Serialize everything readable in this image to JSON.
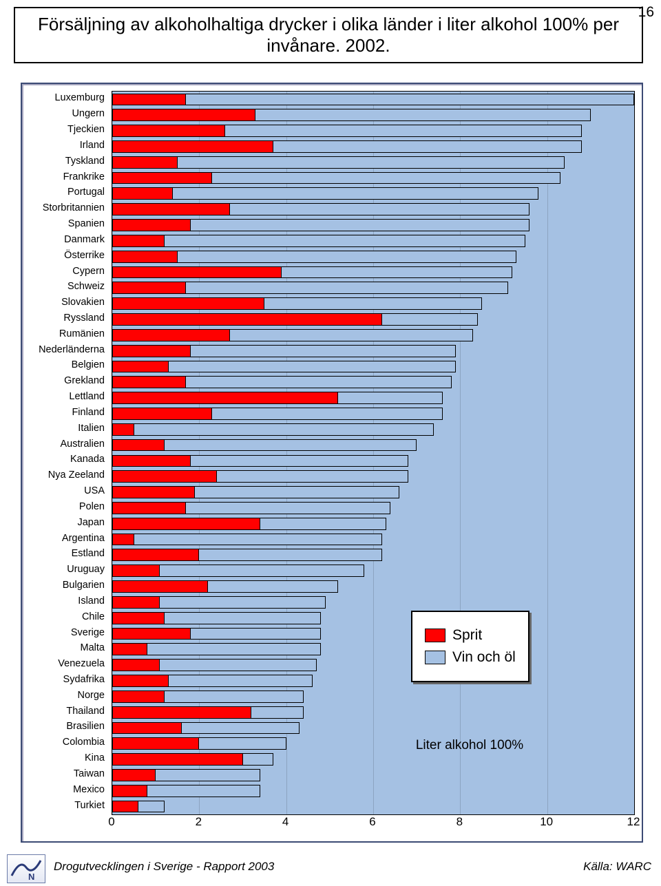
{
  "page_number": "16",
  "title": "Försäljning av alkoholhaltiga drycker i olika länder i liter alkohol 100% per invånare. 2002.",
  "chart": {
    "type": "bar",
    "xlim": [
      0,
      12
    ],
    "xticks": [
      0,
      2,
      4,
      6,
      8,
      10,
      12
    ],
    "bar_color_total": "#a5c1e3",
    "bar_color_sprit": "#ff0000",
    "border_color": "#000000",
    "plot_bg": "#a5c1e3",
    "countries": [
      {
        "name": "Luxemburg",
        "sprit": 1.7,
        "total": 12.0
      },
      {
        "name": "Ungern",
        "sprit": 3.3,
        "total": 11.0
      },
      {
        "name": "Tjeckien",
        "sprit": 2.6,
        "total": 10.8
      },
      {
        "name": "Irland",
        "sprit": 3.7,
        "total": 10.8
      },
      {
        "name": "Tyskland",
        "sprit": 1.5,
        "total": 10.4
      },
      {
        "name": "Frankrike",
        "sprit": 2.3,
        "total": 10.3
      },
      {
        "name": "Portugal",
        "sprit": 1.4,
        "total": 9.8
      },
      {
        "name": "Storbritannien",
        "sprit": 2.7,
        "total": 9.6
      },
      {
        "name": "Spanien",
        "sprit": 1.8,
        "total": 9.6
      },
      {
        "name": "Danmark",
        "sprit": 1.2,
        "total": 9.5
      },
      {
        "name": "Österrike",
        "sprit": 1.5,
        "total": 9.3
      },
      {
        "name": "Cypern",
        "sprit": 3.9,
        "total": 9.2
      },
      {
        "name": "Schweiz",
        "sprit": 1.7,
        "total": 9.1
      },
      {
        "name": "Slovakien",
        "sprit": 3.5,
        "total": 8.5
      },
      {
        "name": "Ryssland",
        "sprit": 6.2,
        "total": 8.4
      },
      {
        "name": "Rumänien",
        "sprit": 2.7,
        "total": 8.3
      },
      {
        "name": "Nederländerna",
        "sprit": 1.8,
        "total": 7.9
      },
      {
        "name": "Belgien",
        "sprit": 1.3,
        "total": 7.9
      },
      {
        "name": "Grekland",
        "sprit": 1.7,
        "total": 7.8
      },
      {
        "name": "Lettland",
        "sprit": 5.2,
        "total": 7.6
      },
      {
        "name": "Finland",
        "sprit": 2.3,
        "total": 7.6
      },
      {
        "name": "Italien",
        "sprit": 0.5,
        "total": 7.4
      },
      {
        "name": "Australien",
        "sprit": 1.2,
        "total": 7.0
      },
      {
        "name": "Kanada",
        "sprit": 1.8,
        "total": 6.8
      },
      {
        "name": "Nya Zeeland",
        "sprit": 2.4,
        "total": 6.8
      },
      {
        "name": "USA",
        "sprit": 1.9,
        "total": 6.6
      },
      {
        "name": "Polen",
        "sprit": 1.7,
        "total": 6.4
      },
      {
        "name": "Japan",
        "sprit": 3.4,
        "total": 6.3
      },
      {
        "name": "Argentina",
        "sprit": 0.5,
        "total": 6.2
      },
      {
        "name": "Estland",
        "sprit": 2.0,
        "total": 6.2
      },
      {
        "name": "Uruguay",
        "sprit": 1.1,
        "total": 5.8
      },
      {
        "name": "Bulgarien",
        "sprit": 2.2,
        "total": 5.2
      },
      {
        "name": "Island",
        "sprit": 1.1,
        "total": 4.9
      },
      {
        "name": "Chile",
        "sprit": 1.2,
        "total": 4.8
      },
      {
        "name": "Sverige",
        "sprit": 1.8,
        "total": 4.8
      },
      {
        "name": "Malta",
        "sprit": 0.8,
        "total": 4.8
      },
      {
        "name": "Venezuela",
        "sprit": 1.1,
        "total": 4.7
      },
      {
        "name": "Sydafrika",
        "sprit": 1.3,
        "total": 4.6
      },
      {
        "name": "Norge",
        "sprit": 1.2,
        "total": 4.4
      },
      {
        "name": "Thailand",
        "sprit": 3.2,
        "total": 4.4
      },
      {
        "name": "Brasilien",
        "sprit": 1.6,
        "total": 4.3
      },
      {
        "name": "Colombia",
        "sprit": 2.0,
        "total": 4.0
      },
      {
        "name": "Kina",
        "sprit": 3.0,
        "total": 3.7
      },
      {
        "name": "Taiwan",
        "sprit": 1.0,
        "total": 3.4
      },
      {
        "name": "Mexico",
        "sprit": 0.8,
        "total": 3.4
      },
      {
        "name": "Turkiet",
        "sprit": 0.6,
        "total": 1.2
      }
    ]
  },
  "legend": {
    "sprit": "Sprit",
    "vin_ol": "Vin och öl"
  },
  "footer_label": "Liter alkohol 100%",
  "bottom_left": "Drogutvecklingen i Sverige - Rapport 2003",
  "bottom_right": "Källa: WARC",
  "colors": {
    "sprit": "#ff0000",
    "vin_ol": "#a5c1e3"
  }
}
